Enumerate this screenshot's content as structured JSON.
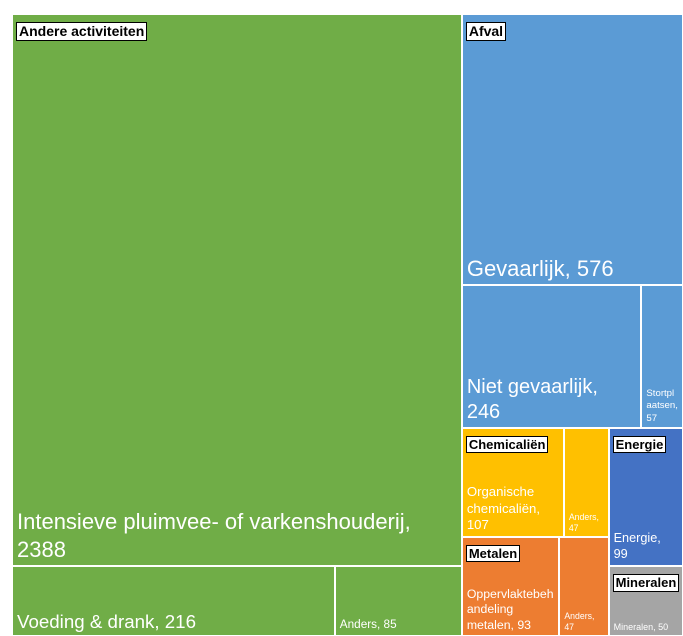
{
  "chart_data": {
    "type": "treemap",
    "groups": [
      {
        "name": "Andere activiteiten",
        "color": "#70ad47",
        "children": [
          {
            "label": "Intensieve pluimvee- of varkenshouderij, 2388",
            "value": 2388
          },
          {
            "label": "Voeding & drank, 216",
            "value": 216
          },
          {
            "label": "Anders, 85",
            "value": 85
          }
        ]
      },
      {
        "name": "Afval",
        "color": "#5b9bd5",
        "children": [
          {
            "label": "Gevaarlijk, 576",
            "value": 576
          },
          {
            "label": "Niet gevaarlijk, 246",
            "value": 246
          },
          {
            "label": "Stortplaatsen, 57",
            "value": 57
          }
        ]
      },
      {
        "name": "Chemicaliën",
        "color": "#ffc000",
        "children": [
          {
            "label": "Organische chemicaliën, 107",
            "value": 107
          },
          {
            "label": "Anders, 47",
            "value": 47
          }
        ]
      },
      {
        "name": "Metalen",
        "color": "#ed7d31",
        "children": [
          {
            "label": "Oppervlaktebehandeling metalen, 93",
            "value": 93
          },
          {
            "label": "Anders, 47",
            "value": 47
          }
        ]
      },
      {
        "name": "Energie",
        "color": "#4472c4",
        "children": [
          {
            "label": "Energie, 99",
            "value": 99
          }
        ]
      },
      {
        "name": "Mineralen",
        "color": "#a5a5a5",
        "children": [
          {
            "label": "Mineralen, 50",
            "value": 50
          }
        ]
      }
    ]
  }
}
